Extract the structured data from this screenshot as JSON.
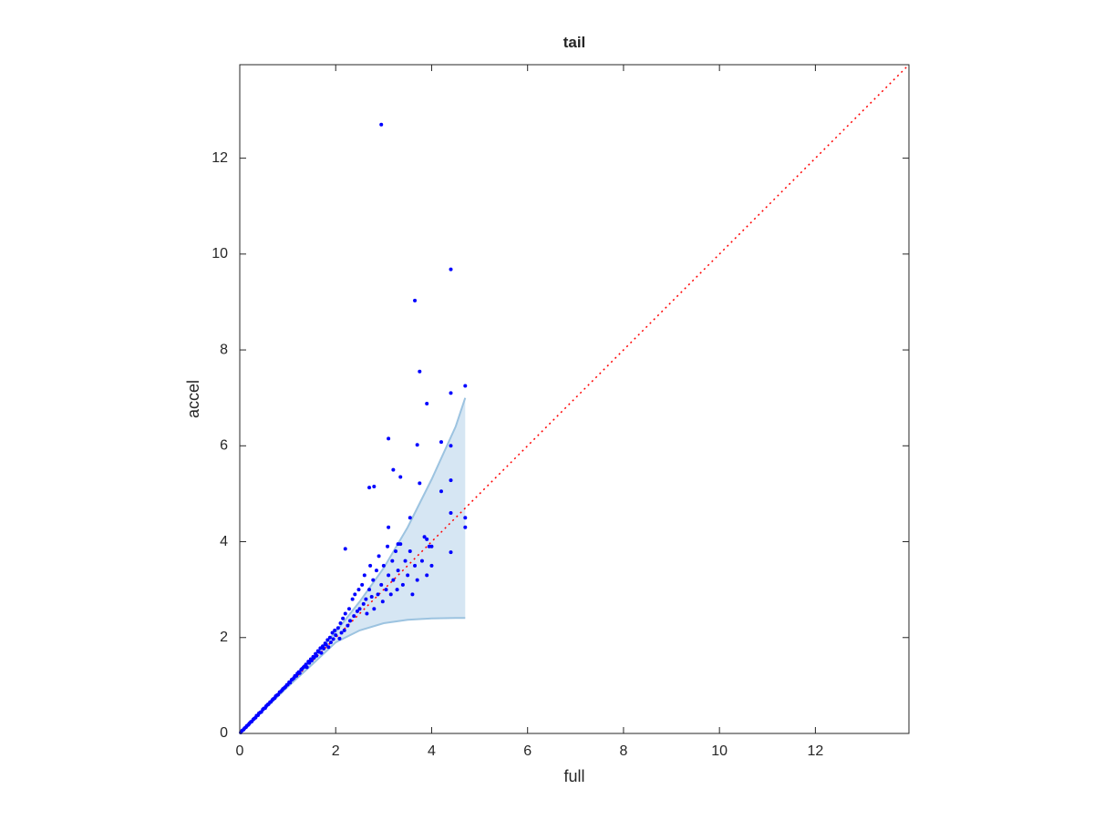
{
  "chart_data": {
    "type": "scatter",
    "title": "tail",
    "x_label": "full",
    "y_label": "accel",
    "xlim": [
      0,
      13.95
    ],
    "ylim": [
      0,
      13.95
    ],
    "xticks": [
      0,
      2,
      4,
      6,
      8,
      10,
      12
    ],
    "yticks": [
      0,
      2,
      4,
      6,
      8,
      10,
      12
    ],
    "grid": false,
    "band": {
      "color": "#d6e6f3",
      "edge_color": "#9cc3e0",
      "x": [
        0,
        0.5,
        1,
        1.5,
        2,
        2.5,
        3,
        3.5,
        4,
        4.5,
        4.7
      ],
      "upper": [
        0,
        0.5,
        1.02,
        1.55,
        2.12,
        2.75,
        3.45,
        4.3,
        5.3,
        6.4,
        7.0
      ],
      "lower": [
        0,
        0.49,
        0.97,
        1.43,
        1.9,
        2.15,
        2.3,
        2.37,
        2.4,
        2.41,
        2.41
      ]
    },
    "reference_line": {
      "color": "#ff0000",
      "x": [
        0,
        13.95
      ],
      "y": [
        0,
        13.95
      ]
    },
    "points": {
      "color": "#0000ff",
      "x": [
        0.02,
        0.05,
        0.08,
        0.1,
        0.13,
        0.15,
        0.18,
        0.2,
        0.23,
        0.25,
        0.28,
        0.3,
        0.33,
        0.35,
        0.38,
        0.4,
        0.43,
        0.45,
        0.48,
        0.5,
        0.53,
        0.55,
        0.58,
        0.6,
        0.63,
        0.65,
        0.68,
        0.7,
        0.73,
        0.75,
        0.78,
        0.8,
        0.83,
        0.85,
        0.88,
        0.9,
        0.93,
        0.95,
        0.98,
        1.0,
        1.03,
        1.05,
        1.08,
        1.1,
        1.13,
        1.15,
        1.18,
        1.2,
        1.23,
        1.25,
        1.28,
        1.3,
        1.33,
        1.35,
        1.38,
        1.4,
        1.43,
        1.45,
        1.48,
        1.5,
        1.53,
        1.55,
        1.58,
        1.6,
        1.63,
        1.65,
        1.68,
        1.7,
        1.73,
        1.75,
        1.78,
        1.8,
        1.83,
        1.85,
        1.88,
        1.9,
        1.93,
        1.95,
        1.98,
        2.0,
        2.05,
        2.08,
        2.1,
        2.12,
        2.15,
        2.18,
        2.2,
        2.25,
        2.28,
        2.3,
        2.35,
        2.38,
        2.4,
        2.45,
        2.48,
        2.5,
        2.55,
        2.58,
        2.6,
        2.63,
        2.65,
        2.7,
        2.72,
        2.75,
        2.78,
        2.8,
        2.85,
        2.88,
        2.9,
        2.95,
        2.98,
        3.0,
        3.05,
        3.08,
        3.1,
        3.15,
        3.18,
        3.2,
        3.25,
        3.28,
        3.3,
        3.35,
        3.4,
        3.45,
        3.5,
        3.55,
        3.6,
        3.65,
        3.7,
        3.8,
        3.85,
        3.9,
        3.95,
        4.0,
        2.95,
        4.4,
        3.65,
        3.75,
        4.7,
        4.4,
        3.1,
        4.2,
        3.7,
        4.4,
        3.9,
        2.2,
        3.2,
        2.8,
        2.7,
        3.35,
        4.2,
        4.4,
        3.75,
        3.55,
        4.7,
        4.7,
        4.4,
        3.9,
        3.1,
        4.0,
        4.4,
        3.3
      ],
      "y": [
        0.02,
        0.06,
        0.08,
        0.11,
        0.13,
        0.16,
        0.18,
        0.21,
        0.24,
        0.25,
        0.29,
        0.31,
        0.33,
        0.37,
        0.38,
        0.42,
        0.44,
        0.45,
        0.5,
        0.52,
        0.53,
        0.57,
        0.6,
        0.61,
        0.65,
        0.66,
        0.7,
        0.72,
        0.74,
        0.78,
        0.8,
        0.81,
        0.86,
        0.87,
        0.9,
        0.93,
        0.95,
        0.97,
        1.01,
        1.02,
        1.07,
        1.06,
        1.12,
        1.13,
        1.16,
        1.2,
        1.2,
        1.25,
        1.28,
        1.26,
        1.33,
        1.35,
        1.38,
        1.4,
        1.44,
        1.38,
        1.5,
        1.47,
        1.55,
        1.52,
        1.6,
        1.58,
        1.66,
        1.62,
        1.72,
        1.7,
        1.78,
        1.68,
        1.82,
        1.77,
        1.88,
        1.85,
        1.95,
        1.8,
        2.0,
        1.9,
        2.1,
        1.97,
        2.15,
        2.05,
        2.2,
        1.98,
        2.3,
        2.1,
        2.4,
        2.15,
        2.5,
        2.25,
        2.6,
        2.35,
        2.8,
        2.45,
        2.9,
        2.55,
        3.0,
        2.6,
        3.1,
        2.7,
        3.3,
        2.8,
        2.5,
        3.0,
        3.5,
        2.85,
        3.2,
        2.6,
        3.4,
        2.9,
        3.7,
        3.1,
        2.75,
        3.5,
        3.0,
        3.9,
        3.3,
        2.9,
        3.6,
        3.2,
        3.8,
        3.0,
        3.4,
        3.95,
        3.1,
        3.6,
        3.3,
        3.8,
        2.9,
        3.5,
        3.2,
        3.6,
        4.1,
        3.3,
        3.9,
        3.5,
        12.7,
        9.68,
        9.03,
        7.55,
        7.25,
        7.1,
        6.15,
        6.08,
        6.02,
        6.0,
        6.88,
        3.85,
        5.5,
        5.15,
        5.13,
        5.35,
        5.05,
        5.28,
        5.22,
        4.5,
        4.5,
        4.3,
        3.78,
        4.05,
        4.3,
        3.9,
        4.6,
        3.95
      ]
    }
  }
}
